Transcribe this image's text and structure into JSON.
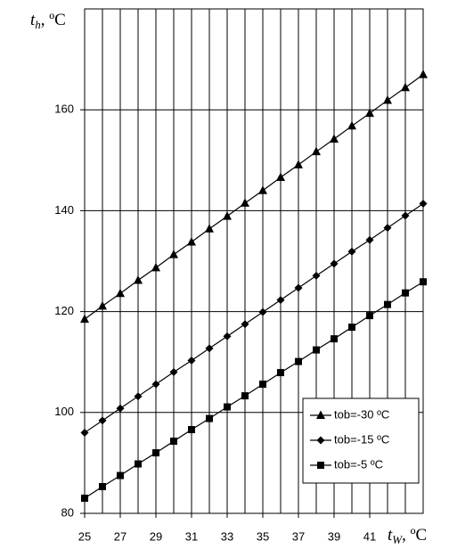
{
  "chart_data": {
    "type": "line",
    "ylabel": {
      "var": "t",
      "sub": "h",
      "unit": ", ºC"
    },
    "xlabel": {
      "var": "t",
      "sub": "W",
      "unit": ", ºC"
    },
    "x": [
      25,
      26,
      27,
      28,
      29,
      30,
      31,
      32,
      33,
      34,
      35,
      36,
      37,
      38,
      39,
      40,
      41,
      42,
      43,
      44
    ],
    "series": [
      {
        "name": "tob=-30 ºC",
        "color": "#000000",
        "marker": "triangle",
        "values": [
          118.5,
          121.1,
          123.6,
          126.2,
          128.7,
          131.3,
          133.8,
          136.4,
          138.9,
          141.5,
          144.0,
          146.6,
          149.1,
          151.7,
          154.2,
          156.8,
          159.3,
          161.9,
          164.4,
          167.0
        ]
      },
      {
        "name": "tob=-15 ºC",
        "color": "#000000",
        "marker": "diamond",
        "values": [
          96.0,
          98.4,
          100.8,
          103.2,
          105.6,
          108.0,
          110.3,
          112.7,
          115.1,
          117.5,
          119.9,
          122.3,
          124.7,
          127.1,
          129.5,
          131.9,
          134.2,
          136.6,
          139.0,
          141.4
        ]
      },
      {
        "name": "tob=-5 ºC",
        "color": "#000000",
        "marker": "square",
        "values": [
          83.0,
          85.3,
          87.5,
          89.8,
          92.0,
          94.3,
          96.6,
          98.8,
          101.1,
          103.3,
          105.6,
          107.9,
          110.1,
          112.4,
          114.6,
          116.9,
          119.2,
          121.4,
          123.7,
          125.9
        ]
      }
    ],
    "xlim": [
      25,
      44
    ],
    "xticks": [
      25,
      27,
      29,
      31,
      33,
      35,
      37,
      39,
      41
    ],
    "xgrid": [
      26,
      27,
      28,
      29,
      30,
      31,
      32,
      33,
      34,
      35,
      36,
      37,
      38,
      39,
      40,
      41,
      42,
      43
    ],
    "ylim": [
      80,
      180
    ],
    "yticks": [
      80,
      100,
      120,
      140,
      160
    ],
    "grid": true,
    "legend": "lower right"
  }
}
